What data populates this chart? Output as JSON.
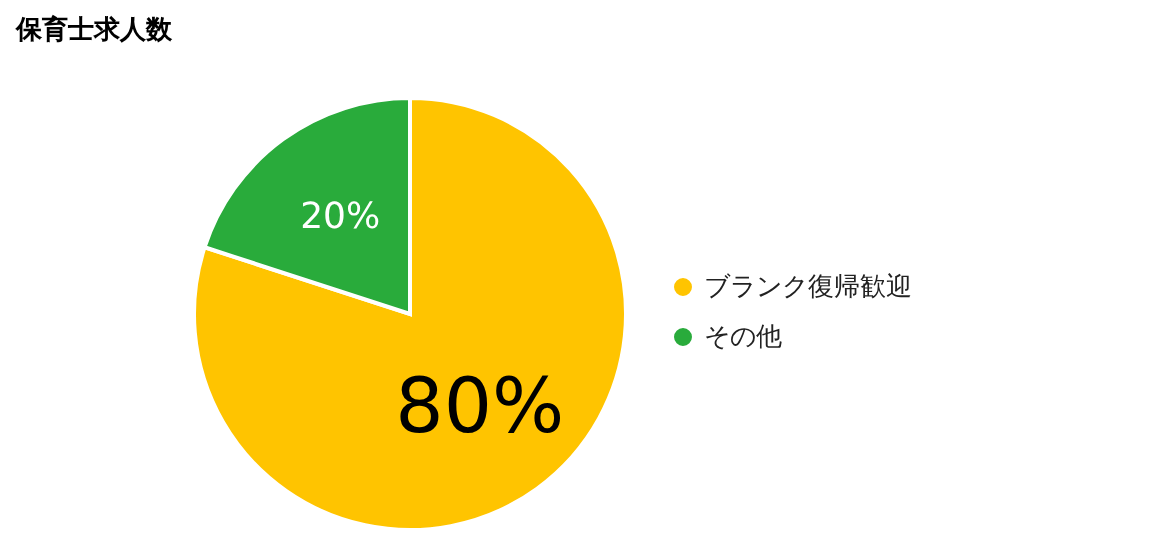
{
  "chart_data": {
    "type": "pie",
    "title": "保育士求人数",
    "categories": [
      "ブランク復帰歓迎",
      "その他"
    ],
    "values": [
      80,
      20
    ],
    "colors": [
      "#ffc400",
      "#29ab3b"
    ],
    "value_labels": [
      "80%",
      "20%"
    ],
    "legend": "right"
  }
}
